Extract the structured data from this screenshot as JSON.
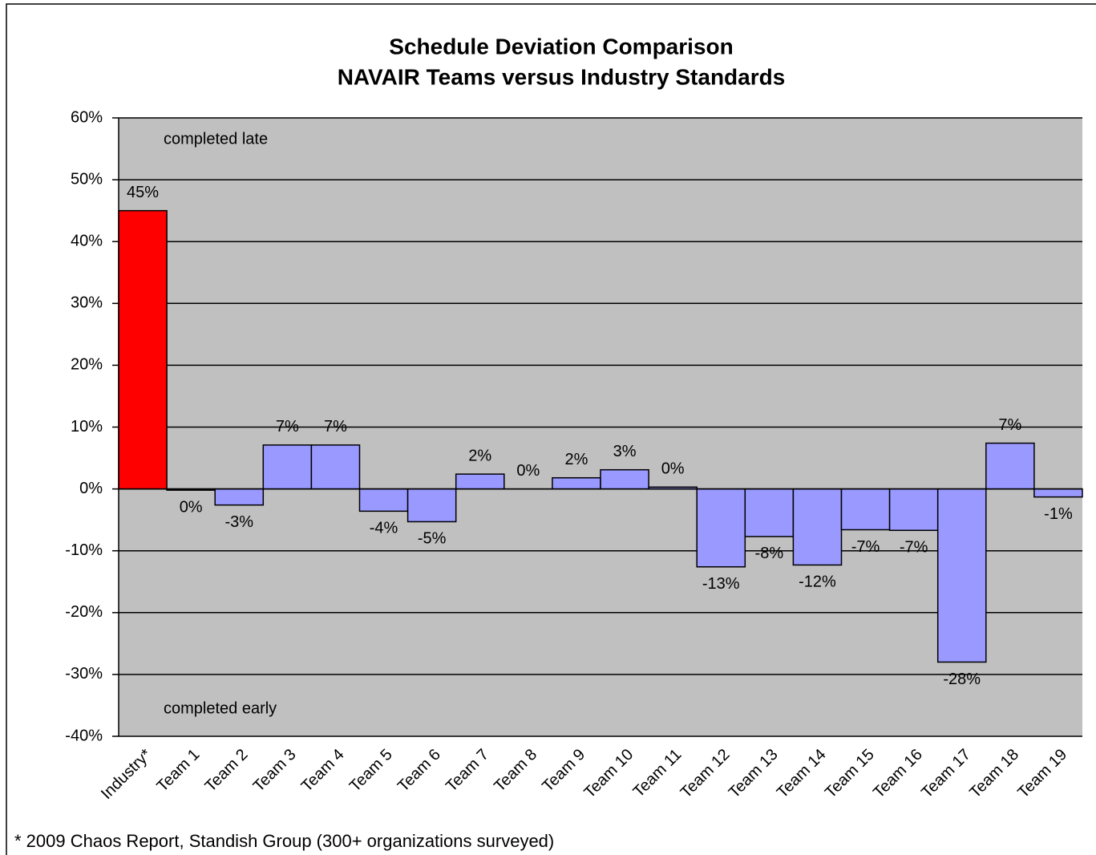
{
  "chart_data": {
    "type": "bar",
    "title": "Schedule Deviation Comparison",
    "subtitle": "NAVAIR Teams versus Industry Standards",
    "categories": [
      "Industry*",
      "Team 1",
      "Team 2",
      "Team 3",
      "Team 4",
      "Team 5",
      "Team 6",
      "Team 7",
      "Team 8",
      "Team 9",
      "Team 10",
      "Team 11",
      "Team 12",
      "Team 13",
      "Team 14",
      "Team 15",
      "Team 16",
      "Team 17",
      "Team 18",
      "Team 19"
    ],
    "values": [
      45,
      -0.2,
      -2.6,
      7.1,
      7.1,
      -3.6,
      -5.3,
      2.4,
      0,
      1.8,
      3.1,
      0.3,
      -12.6,
      -7.7,
      -12.3,
      -6.6,
      -6.7,
      -28,
      7.4,
      -1.3
    ],
    "value_labels": [
      "45%",
      "0%",
      "-3%",
      "7%",
      "7%",
      "-4%",
      "-5%",
      "2%",
      "0%",
      "2%",
      "3%",
      "0%",
      "-13%",
      "-8%",
      "-12%",
      "-7%",
      "-7%",
      "-28%",
      "7%",
      "-1%"
    ],
    "colors": [
      "#ff0000",
      "#9999ff",
      "#9999ff",
      "#9999ff",
      "#9999ff",
      "#9999ff",
      "#9999ff",
      "#9999ff",
      "#9999ff",
      "#9999ff",
      "#9999ff",
      "#9999ff",
      "#9999ff",
      "#9999ff",
      "#9999ff",
      "#9999ff",
      "#9999ff",
      "#9999ff",
      "#9999ff",
      "#9999ff"
    ],
    "ylim": [
      -40,
      60
    ],
    "yticks": [
      {
        "value": -40,
        "label": "-40%"
      },
      {
        "value": -30,
        "label": "-30%"
      },
      {
        "value": -20,
        "label": "-20%"
      },
      {
        "value": -10,
        "label": "-10%"
      },
      {
        "value": 0,
        "label": "0%"
      },
      {
        "value": 10,
        "label": "10%"
      },
      {
        "value": 20,
        "label": "20%"
      },
      {
        "value": 30,
        "label": "30%"
      },
      {
        "value": 40,
        "label": "40%"
      },
      {
        "value": 50,
        "label": "50%"
      },
      {
        "value": 60,
        "label": "60%"
      }
    ],
    "grid": true,
    "annotations": [
      "completed late",
      "completed early"
    ],
    "footnote": "* 2009 Chaos Report, Standish Group (300+ organizations surveyed)"
  }
}
